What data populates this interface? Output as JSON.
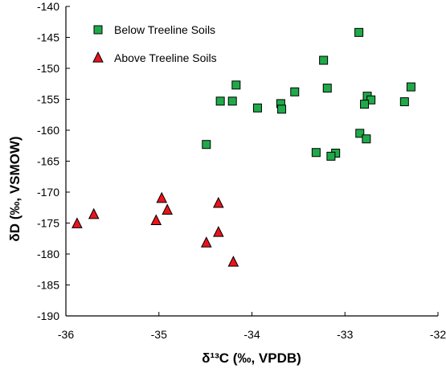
{
  "chart_data": {
    "type": "scatter",
    "title": "",
    "xlabel": "δ¹³C (‰, VPDB)",
    "ylabel": "δD (‰, VSMOW)",
    "xlim": [
      -36,
      -32
    ],
    "ylim": [
      -190,
      -140
    ],
    "x_ticks": [
      -36,
      -35,
      -34,
      -33,
      -32
    ],
    "y_ticks": [
      -140,
      -145,
      -150,
      -155,
      -160,
      -165,
      -170,
      -175,
      -180,
      -185,
      -190
    ],
    "x_tick_labels": [
      "-36",
      "-35",
      "-34",
      "-33",
      "-32"
    ],
    "y_tick_labels": [
      "-140",
      "-145",
      "-150",
      "-155",
      "-160",
      "-165",
      "-170",
      "-175",
      "-180",
      "-185",
      "-190"
    ],
    "grid": false,
    "legend_position": "top-left",
    "series": [
      {
        "name": "Below Treeline Soils",
        "marker": "square",
        "color": "#1faa4a",
        "edge_color": "#000000",
        "points": [
          {
            "x": -32.85,
            "y": -144.2
          },
          {
            "x": -33.23,
            "y": -148.7
          },
          {
            "x": -34.17,
            "y": -152.7
          },
          {
            "x": -33.19,
            "y": -153.2
          },
          {
            "x": -32.29,
            "y": -153.0
          },
          {
            "x": -33.54,
            "y": -153.8
          },
          {
            "x": -32.76,
            "y": -154.5
          },
          {
            "x": -32.72,
            "y": -155.1
          },
          {
            "x": -34.34,
            "y": -155.3
          },
          {
            "x": -34.21,
            "y": -155.3
          },
          {
            "x": -33.69,
            "y": -155.7
          },
          {
            "x": -32.79,
            "y": -155.8
          },
          {
            "x": -32.36,
            "y": -155.4
          },
          {
            "x": -33.94,
            "y": -156.4
          },
          {
            "x": -33.68,
            "y": -156.6
          },
          {
            "x": -32.84,
            "y": -160.5
          },
          {
            "x": -32.77,
            "y": -161.4
          },
          {
            "x": -34.49,
            "y": -162.3
          },
          {
            "x": -33.31,
            "y": -163.6
          },
          {
            "x": -33.1,
            "y": -163.7
          },
          {
            "x": -33.15,
            "y": -164.2
          }
        ]
      },
      {
        "name": "Above Treeline Soils",
        "marker": "triangle",
        "color": "#e8141b",
        "edge_color": "#000000",
        "points": [
          {
            "x": -34.97,
            "y": -171.0
          },
          {
            "x": -34.36,
            "y": -171.8
          },
          {
            "x": -34.91,
            "y": -172.9
          },
          {
            "x": -35.7,
            "y": -173.6
          },
          {
            "x": -35.03,
            "y": -174.6
          },
          {
            "x": -35.88,
            "y": -175.1
          },
          {
            "x": -34.36,
            "y": -176.5
          },
          {
            "x": -34.49,
            "y": -178.2
          },
          {
            "x": -34.2,
            "y": -181.3
          }
        ]
      }
    ]
  }
}
